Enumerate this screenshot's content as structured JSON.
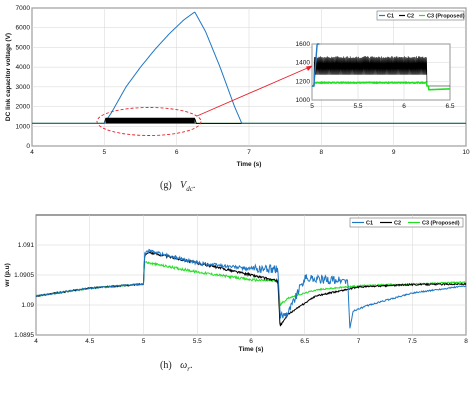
{
  "colors": {
    "C1": "#1f77c4",
    "C2": "#000000",
    "C3": "#22dd22",
    "annotation": "#e8202a"
  },
  "captions": {
    "g_prefix": "(g)",
    "g_var": "V",
    "g_sub": "dc",
    "g_suffix": ".",
    "h_prefix": "(h)",
    "h_var": "ω",
    "h_sub": "r",
    "h_suffix": "."
  },
  "chart_data": [
    {
      "type": "line",
      "xlabel": "Time (s)",
      "ylabel": "DC link capacitor voltage (V)",
      "xlim": [
        4,
        10
      ],
      "ylim": [
        0,
        7000
      ],
      "xticks": [
        "4",
        "5",
        "6",
        "7",
        "8",
        "9",
        "10"
      ],
      "yticks": [
        "0",
        "1000",
        "2000",
        "3000",
        "4000",
        "5000",
        "6000",
        "7000"
      ],
      "grid": true,
      "legend": [
        "C1",
        "C2",
        "C3 (Proposed)"
      ],
      "legend_position": "top-right",
      "series": [
        {
          "name": "C1",
          "x": [
            4,
            5.0,
            5.1,
            5.3,
            5.5,
            5.7,
            5.9,
            6.1,
            6.25,
            6.4,
            6.6,
            6.8,
            6.9,
            7.0,
            8,
            10
          ],
          "values": [
            1150,
            1150,
            1700,
            3000,
            4000,
            4900,
            5700,
            6400,
            6800,
            5800,
            4000,
            2000,
            1150,
            1150,
            1150,
            1150
          ]
        },
        {
          "name": "C2",
          "x": [
            4,
            5.0,
            5.02,
            6.25,
            6.27,
            10
          ],
          "values": [
            1150,
            1150,
            1400,
            1400,
            1150,
            1150
          ]
        },
        {
          "name": "C3 (Proposed)",
          "x": [
            4,
            10
          ],
          "values": [
            1150,
            1150
          ]
        }
      ],
      "inset": {
        "xlim": [
          5,
          6.5
        ],
        "ylim": [
          1000,
          1600
        ],
        "xticks": [
          "5",
          "5.5",
          "6",
          "6.5"
        ],
        "yticks": [
          "1000",
          "1200",
          "1400",
          "1600"
        ]
      }
    },
    {
      "type": "line",
      "xlabel": "Time (s)",
      "ylabel": "wr (p.u)",
      "xlim": [
        4,
        8
      ],
      "ylim": [
        1.0895,
        1.0915
      ],
      "xticks": [
        "4",
        "4.5",
        "5",
        "5.5",
        "6",
        "6.5",
        "7",
        "7.5",
        "8"
      ],
      "yticks": [
        "1.0895",
        "1.09",
        "1.0905",
        "1.091"
      ],
      "grid": true,
      "legend": [
        "C1",
        "C2",
        "C3 (Proposed)"
      ],
      "legend_position": "top-right",
      "series": [
        {
          "name": "C1",
          "x": [
            4,
            4.5,
            5.0,
            5.01,
            5.05,
            5.5,
            6.0,
            6.25,
            6.27,
            6.35,
            6.5,
            6.7,
            6.9,
            6.92,
            6.95,
            7.1,
            7.5,
            8.0
          ],
          "values": [
            1.09015,
            1.09028,
            1.09035,
            1.09085,
            1.0909,
            1.0907,
            1.0906,
            1.0906,
            1.0898,
            1.0899,
            1.09045,
            1.09042,
            1.0904,
            1.0896,
            1.0899,
            1.09,
            1.0902,
            1.09032
          ]
        },
        {
          "name": "C2",
          "x": [
            4,
            4.5,
            5.0,
            5.01,
            5.05,
            5.5,
            6.0,
            6.25,
            6.27,
            6.35,
            6.6,
            7.0,
            7.5,
            8.0
          ],
          "values": [
            1.09015,
            1.09028,
            1.09035,
            1.09082,
            1.09088,
            1.0907,
            1.0905,
            1.0904,
            1.08965,
            1.08985,
            1.09015,
            1.0903,
            1.09034,
            1.09035
          ]
        },
        {
          "name": "C3 (Proposed)",
          "x": [
            4,
            4.5,
            5.0,
            5.01,
            5.05,
            5.5,
            6.0,
            6.25,
            6.27,
            6.35,
            6.6,
            7.0,
            7.5,
            8.0
          ],
          "values": [
            1.09015,
            1.09028,
            1.09035,
            1.09072,
            1.0907,
            1.09055,
            1.09042,
            1.0904,
            1.09,
            1.09012,
            1.09025,
            1.09032,
            1.09035,
            1.09038
          ]
        }
      ]
    }
  ]
}
